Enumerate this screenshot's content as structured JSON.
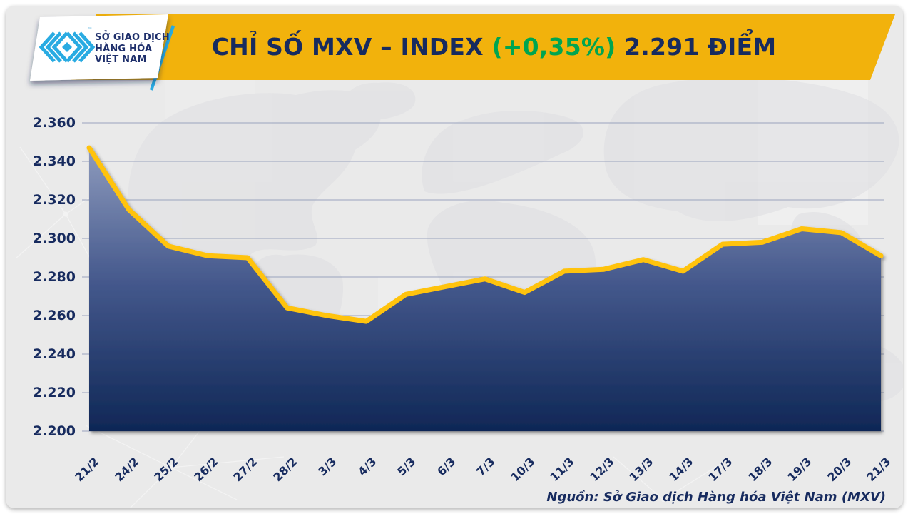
{
  "header": {
    "logo": {
      "mark_color": "#29ABE2",
      "tm": "™",
      "lines": [
        "SỞ GIAO DỊCH",
        "HÀNG HÓA",
        "VIỆT NAM"
      ]
    },
    "title": {
      "prefix": "CHỈ SỐ MXV – INDEX",
      "change": "(+0,35%)",
      "value": "2.291 ĐIỂM"
    }
  },
  "chart_data": {
    "type": "area",
    "title": "CHỈ SỐ MXV – INDEX (+0,35%) 2.291 ĐIỂM",
    "categories": [
      "21/2",
      "24/2",
      "25/2",
      "26/2",
      "27/2",
      "28/2",
      "3/3",
      "4/3",
      "5/3",
      "6/3",
      "7/3",
      "10/3",
      "11/3",
      "12/3",
      "13/3",
      "14/3",
      "17/3",
      "18/3",
      "19/3",
      "20/3",
      "21/3"
    ],
    "values": [
      2347,
      2315,
      2296,
      2291,
      2290,
      2264,
      2260,
      2257,
      2271,
      2275,
      2279,
      2272,
      2283,
      2284,
      2289,
      2283,
      2297,
      2298,
      2305,
      2303,
      2291
    ],
    "ylim": [
      2200,
      2360
    ],
    "ytick_step": 20,
    "ytick_labels": [
      "2.360",
      "2.340",
      "2.320",
      "2.300",
      "2.280",
      "2.260",
      "2.240",
      "2.220",
      "2.200"
    ],
    "grid": "horizontal",
    "legend": "none",
    "xlabel": "",
    "ylabel": "",
    "line_color": "#FFC30B",
    "area_gradient_top": "#9BA7C6",
    "area_gradient_bottom": "#0F2756"
  },
  "footer": {
    "source": "Nguồn: Sở Giao dịch Hàng hóa Việt Nam (MXV)"
  },
  "colors": {
    "banner": "#F2B20C",
    "navy": "#172B5F",
    "green": "#00A550",
    "panel_bg": "#EAEAEA"
  }
}
